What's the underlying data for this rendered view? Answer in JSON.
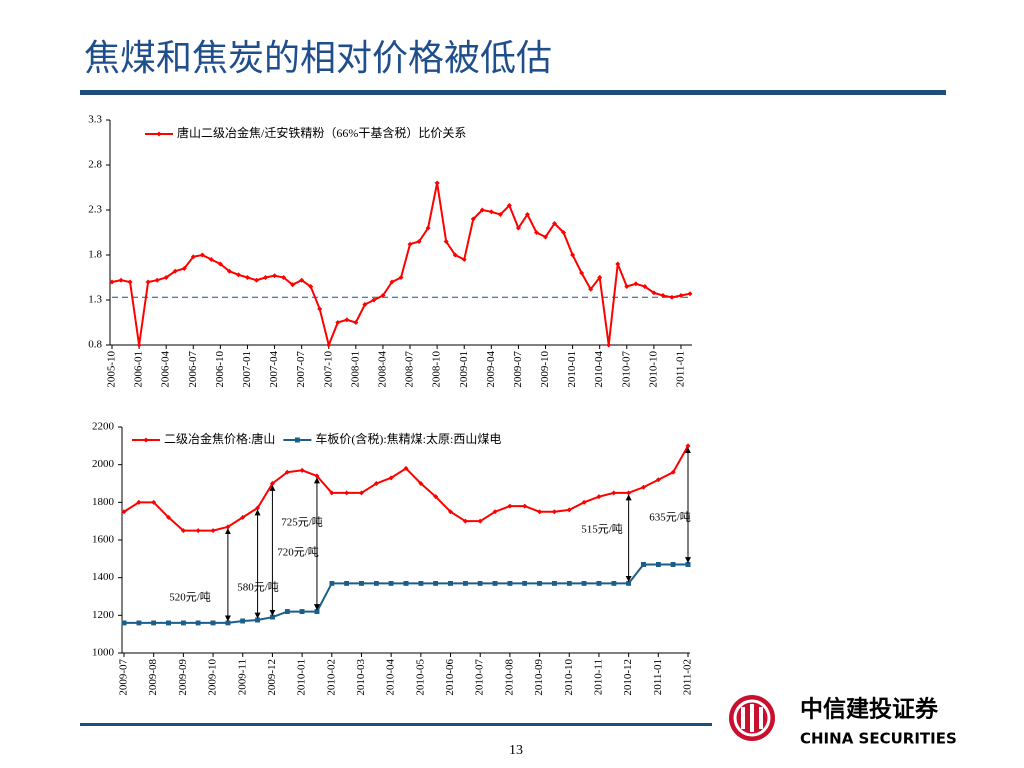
{
  "title": "焦煤和焦炭的相对价格被低估",
  "page_number": 13,
  "logo": {
    "name_cn": "中信建投证券",
    "name_en": "CHINA SECURITIES"
  },
  "chart_data": [
    {
      "type": "line",
      "categories": [
        "2005-10",
        null,
        null,
        "2006-01",
        null,
        null,
        "2006-04",
        null,
        null,
        "2006-07",
        null,
        null,
        "2006-10",
        null,
        null,
        "2007-01",
        null,
        null,
        "2007-04",
        null,
        null,
        "2007-07",
        null,
        null,
        "2007-10",
        null,
        null,
        "2008-01",
        null,
        null,
        "2008-04",
        null,
        null,
        "2008-07",
        null,
        null,
        "2008-10",
        null,
        null,
        "2009-01",
        null,
        null,
        "2009-04",
        null,
        null,
        "2009-07",
        null,
        null,
        "2009-10",
        null,
        null,
        "2010-01",
        null,
        null,
        "2010-04",
        null,
        null,
        "2010-07",
        null,
        null,
        "2010-10",
        null,
        null,
        "2011-01",
        null
      ],
      "series": [
        {
          "name": "唐山二级冶金焦/迁安铁精粉（66%干基含税）比价关系",
          "color": "#ff0000",
          "marker": "diamond",
          "values": [
            1.5,
            1.52,
            1.5,
            0.8,
            1.5,
            1.52,
            1.55,
            1.62,
            1.65,
            1.78,
            1.8,
            1.75,
            1.7,
            1.62,
            1.58,
            1.55,
            1.52,
            1.55,
            1.57,
            1.55,
            1.47,
            1.52,
            1.45,
            1.2,
            0.8,
            1.05,
            1.08,
            1.05,
            1.25,
            1.3,
            1.35,
            1.5,
            1.55,
            1.92,
            1.95,
            2.1,
            2.6,
            1.95,
            1.8,
            1.75,
            2.2,
            2.3,
            2.28,
            2.25,
            2.35,
            2.1,
            2.25,
            2.05,
            2.0,
            2.15,
            2.05,
            1.8,
            1.6,
            1.42,
            1.55,
            0.8,
            1.7,
            1.45,
            1.48,
            1.45,
            1.38,
            1.35,
            1.33,
            1.35,
            1.37
          ]
        }
      ],
      "reference_line": 1.33,
      "ylim": [
        0.8,
        3.3
      ],
      "yticks": [
        0.8,
        1.3,
        1.8,
        2.3,
        2.8,
        3.3
      ]
    },
    {
      "type": "line",
      "categories": [
        "2009-07",
        null,
        "2009-08",
        null,
        "2009-09",
        null,
        "2009-10",
        null,
        "2009-11",
        null,
        "2009-12",
        null,
        "2010-01",
        null,
        "2010-02",
        null,
        "2010-03",
        null,
        "2010-04",
        null,
        "2010-05",
        null,
        "2010-06",
        null,
        "2010-07",
        null,
        "2010-08",
        null,
        "2010-09",
        null,
        "2010-10",
        null,
        "2010-11",
        null,
        "2010-12",
        null,
        "2011-01",
        null,
        "2011-02"
      ],
      "series": [
        {
          "name": "二级冶金焦价格:唐山",
          "color": "#ff0000",
          "marker": "diamond",
          "values": [
            1750,
            1800,
            1800,
            1720,
            1650,
            1650,
            1650,
            1670,
            1720,
            1770,
            1900,
            1960,
            1970,
            1940,
            1850,
            1850,
            1850,
            1900,
            1930,
            1980,
            1900,
            1830,
            1750,
            1700,
            1700,
            1750,
            1780,
            1780,
            1750,
            1750,
            1760,
            1800,
            1830,
            1850,
            1850,
            1880,
            1920,
            1960,
            2100
          ]
        },
        {
          "name": "车板价(含税):焦精煤:太原:西山煤电",
          "color": "#1a5e8a",
          "marker": "square",
          "values": [
            1160,
            1160,
            1160,
            1160,
            1160,
            1160,
            1160,
            1160,
            1170,
            1175,
            1190,
            1220,
            1220,
            1220,
            1370,
            1370,
            1370,
            1370,
            1370,
            1370,
            1370,
            1370,
            1370,
            1370,
            1370,
            1370,
            1370,
            1370,
            1370,
            1370,
            1370,
            1370,
            1370,
            1370,
            1370,
            1470,
            1470,
            1470,
            1470
          ]
        }
      ],
      "annotations": [
        {
          "text": "520元/吨"
        },
        {
          "text": "580元/吨"
        },
        {
          "text": "725元/吨"
        },
        {
          "text": "720元/吨"
        },
        {
          "text": "515元/吨"
        },
        {
          "text": "635元/吨"
        }
      ],
      "ylim": [
        1000,
        2200
      ],
      "yticks": [
        1000,
        1200,
        1400,
        1600,
        1800,
        2000,
        2200
      ]
    }
  ]
}
